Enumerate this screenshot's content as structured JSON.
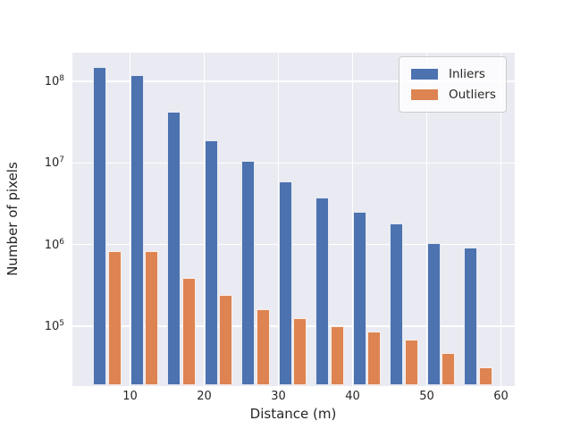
{
  "chart_data": {
    "type": "bar",
    "title": "",
    "xlabel": "Distance (m)",
    "ylabel": "Number of pixels",
    "yscale": "log",
    "grid": true,
    "xlim_m": [
      2.1,
      61.9
    ],
    "ylim": [
      19000,
      230000000
    ],
    "xticks": [
      10,
      20,
      30,
      40,
      50,
      60
    ],
    "ytick_exponents": [
      5,
      6,
      7,
      8
    ],
    "bin_start_m": [
      5,
      10,
      15,
      20,
      25,
      30,
      35,
      40,
      45,
      50,
      55
    ],
    "bar_width_m": 2,
    "legend_position": "upper right",
    "series": [
      {
        "name": "Inliers",
        "color": "#4c72b0",
        "values": [
          150000000,
          120000000,
          42000000,
          19000000,
          10500000,
          6000000,
          3800000,
          2500000,
          1800000,
          1050000,
          920000
        ]
      },
      {
        "name": "Outliers",
        "color": "#dd8452",
        "values": [
          830000,
          830000,
          390000,
          240000,
          160000,
          125000,
          100000,
          86000,
          69000,
          47000,
          31000
        ]
      }
    ]
  },
  "legend": {
    "inliers_label": "Inliers",
    "outliers_label": "Outliers"
  },
  "axes": {
    "xlabel": "Distance (m)",
    "ylabel": "Number of pixels"
  }
}
